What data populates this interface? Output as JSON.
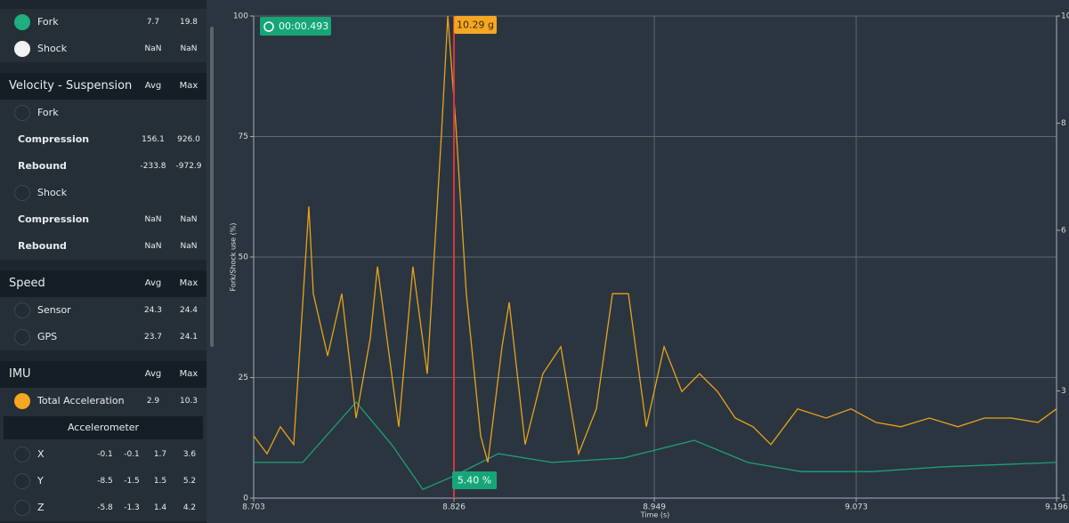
{
  "panel": {
    "top_rows": [
      {
        "kind": "dot",
        "color": "#1fae7e",
        "label": "Fork",
        "values": [
          "7.7",
          "19.8"
        ]
      },
      {
        "kind": "dot",
        "color": "#f2f2f2",
        "label": "Shock",
        "values": [
          "NaN",
          "NaN"
        ]
      }
    ],
    "sections": [
      {
        "title": "Velocity - Suspension",
        "columns": [
          "Avg",
          "Max"
        ],
        "rows": [
          {
            "kind": "radio",
            "label": "Fork"
          },
          {
            "kind": "plain",
            "label": "Compression",
            "values": [
              "156.1",
              "926.0"
            ]
          },
          {
            "kind": "plain",
            "label": "Rebound",
            "values": [
              "-233.8",
              "-972.9"
            ]
          },
          {
            "kind": "radio",
            "label": "Shock"
          },
          {
            "kind": "plain",
            "label": "Compression",
            "values": [
              "NaN",
              "NaN"
            ]
          },
          {
            "kind": "plain",
            "label": "Rebound",
            "values": [
              "NaN",
              "NaN"
            ]
          }
        ]
      },
      {
        "title": "Speed",
        "columns": [
          "Avg",
          "Max"
        ],
        "rows": [
          {
            "kind": "radio",
            "label": "Sensor",
            "values": [
              "24.3",
              "24.4"
            ]
          },
          {
            "kind": "radio",
            "label": "GPS",
            "values": [
              "23.7",
              "24.1"
            ]
          }
        ]
      },
      {
        "title": "IMU",
        "columns": [
          "Avg",
          "Max"
        ],
        "rows": [
          {
            "kind": "dot",
            "color": "#f5a623",
            "label": "Total Acceleration",
            "values": [
              "2.9",
              "10.3"
            ]
          },
          {
            "kind": "subheader",
            "label": "Accelerometer"
          },
          {
            "kind": "radio",
            "label": "X",
            "values": [
              "-0.1",
              "-0.1",
              "1.7",
              "3.6"
            ]
          },
          {
            "kind": "radio",
            "label": "Y",
            "values": [
              "-8.5",
              "-1.5",
              "1.5",
              "5.2"
            ]
          },
          {
            "kind": "radio",
            "label": "Z",
            "values": [
              "-5.8",
              "-1.3",
              "1.4",
              "4.2"
            ]
          }
        ]
      }
    ]
  },
  "chart_data": {
    "type": "line",
    "x_label": "Time (s)",
    "y_label": "Fork/Shock use (%)",
    "timer": "00:00.493",
    "cursor": {
      "x": 8.826,
      "labels": [
        "10.29 g",
        "5.40 %"
      ]
    },
    "x": [
      8.703,
      8.7112,
      8.7194,
      8.7276,
      8.7369,
      8.7396,
      8.7484,
      8.7571,
      8.7659,
      8.7746,
      8.779,
      8.7877,
      8.7921,
      8.8008,
      8.8096,
      8.8183,
      8.8222,
      8.8271,
      8.8336,
      8.8424,
      8.8468,
      8.8555,
      8.8599,
      8.8697,
      8.8806,
      8.8916,
      8.9025,
      8.9134,
      8.9233,
      8.9331,
      8.9441,
      8.955,
      8.9659,
      8.9768,
      8.9878,
      8.9987,
      9.0096,
      9.0206,
      9.037,
      9.0545,
      9.0698,
      9.0851,
      9.1004,
      9.1179,
      9.1354,
      9.1518,
      9.1682,
      9.1846,
      9.196
    ],
    "series": [
      {
        "color": "#e8a21c",
        "values": [
          12.9,
          9.2,
          14.8,
          11.1,
          60.5,
          42.4,
          29.5,
          42.4,
          16.6,
          33.2,
          48,
          25.8,
          14.8,
          48,
          25.8,
          75.6,
          100,
          77.5,
          42.4,
          12.9,
          7.4,
          31.4,
          40.6,
          11.1,
          25.8,
          31.4,
          9.2,
          18.5,
          42.4,
          42.4,
          14.8,
          31.4,
          22.1,
          25.8,
          22.1,
          16.6,
          14.8,
          11.1,
          18.5,
          16.6,
          18.5,
          15.7,
          14.8,
          16.6,
          14.8,
          16.6,
          16.6,
          15.7,
          18.5
        ]
      },
      {
        "color": "#1f9e7a",
        "x": [
          8.703,
          8.7331,
          8.7659,
          8.7877,
          8.8069,
          8.826,
          8.8533,
          8.8861,
          8.9298,
          8.9736,
          9.0064,
          9.0392,
          9.0829,
          9.1266,
          9.196
        ],
        "values": [
          7.4,
          7.4,
          19.9,
          11.1,
          1.8,
          4.6,
          9.2,
          7.4,
          8.3,
          12,
          7.4,
          5.5,
          5.5,
          6.5,
          7.4
        ]
      }
    ],
    "xlim": [
      8.703,
      9.196
    ],
    "xticks": [
      8.703,
      8.826,
      8.949,
      9.073,
      9.196
    ],
    "ylim": [
      0,
      100
    ],
    "yticks": [
      0,
      25,
      50,
      75,
      100
    ],
    "y2lim": [
      1,
      10
    ],
    "y2ticks": [
      1,
      3,
      6,
      8,
      10
    ],
    "grid": true
  }
}
